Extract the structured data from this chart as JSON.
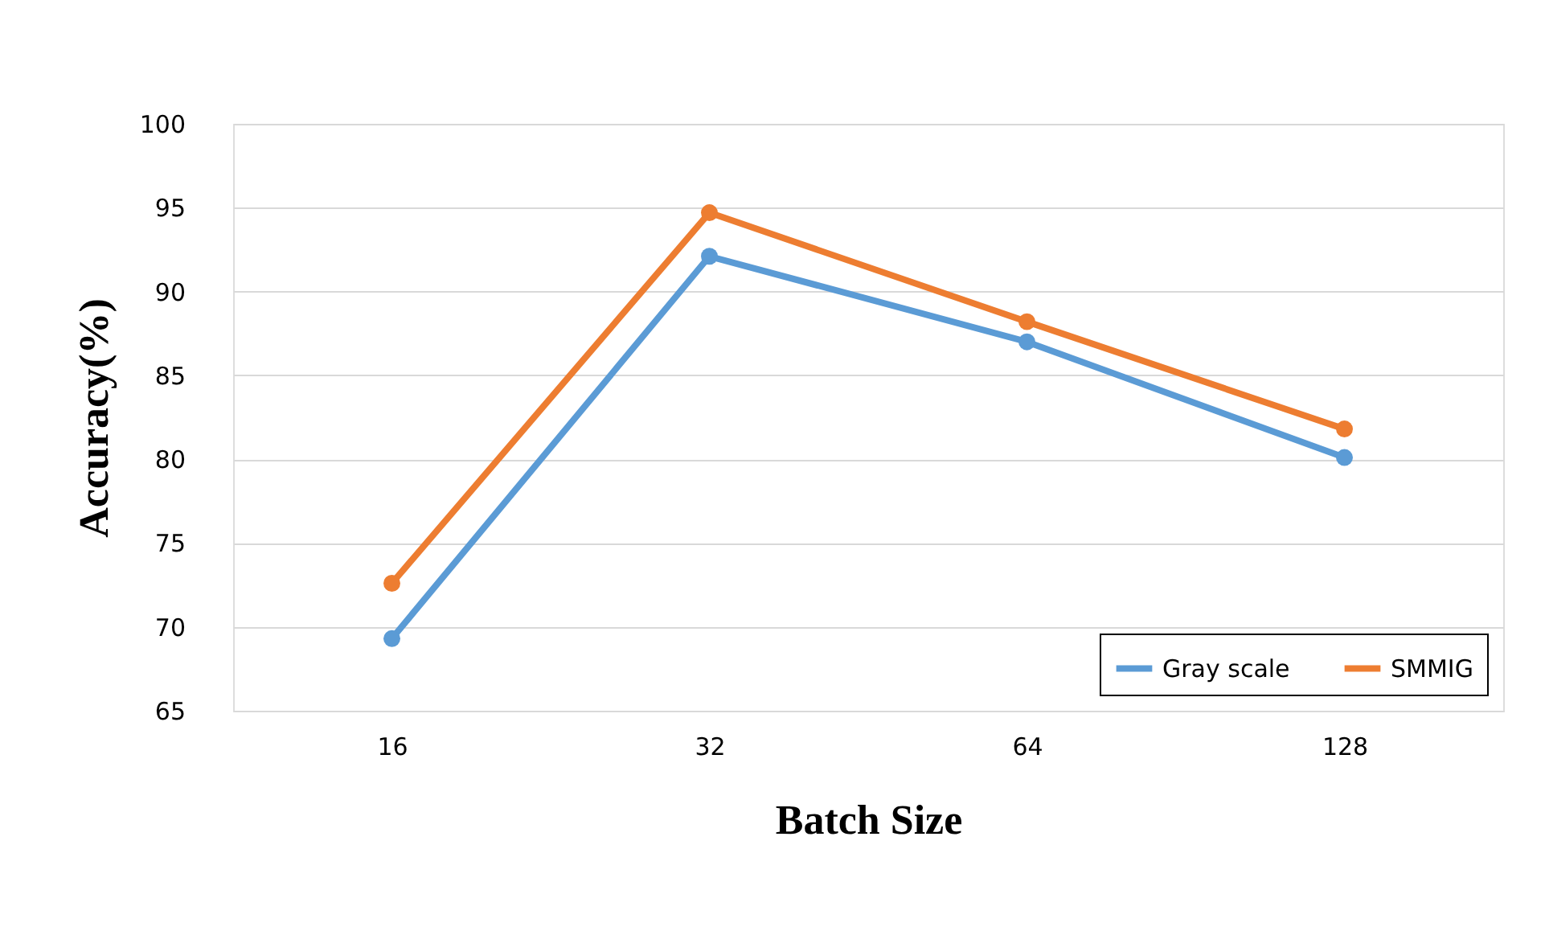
{
  "chart_data": {
    "type": "line",
    "xlabel": "Batch Size",
    "ylabel": "Accuracy(%)",
    "categories": [
      "16",
      "32",
      "64",
      "128"
    ],
    "series": [
      {
        "name": "Gray scale",
        "color": "#5b9bd5",
        "values": [
          69.3,
          92.1,
          87.0,
          80.1
        ]
      },
      {
        "name": "SMMIG",
        "color": "#ed7d31",
        "values": [
          72.6,
          94.7,
          88.2,
          81.8
        ]
      }
    ],
    "ylim": [
      65,
      100
    ],
    "yticks": [
      65,
      70,
      75,
      80,
      85,
      90,
      95,
      100
    ],
    "grid": "y",
    "legend": "bottom right",
    "marker": "circle",
    "line_style": "solid"
  }
}
